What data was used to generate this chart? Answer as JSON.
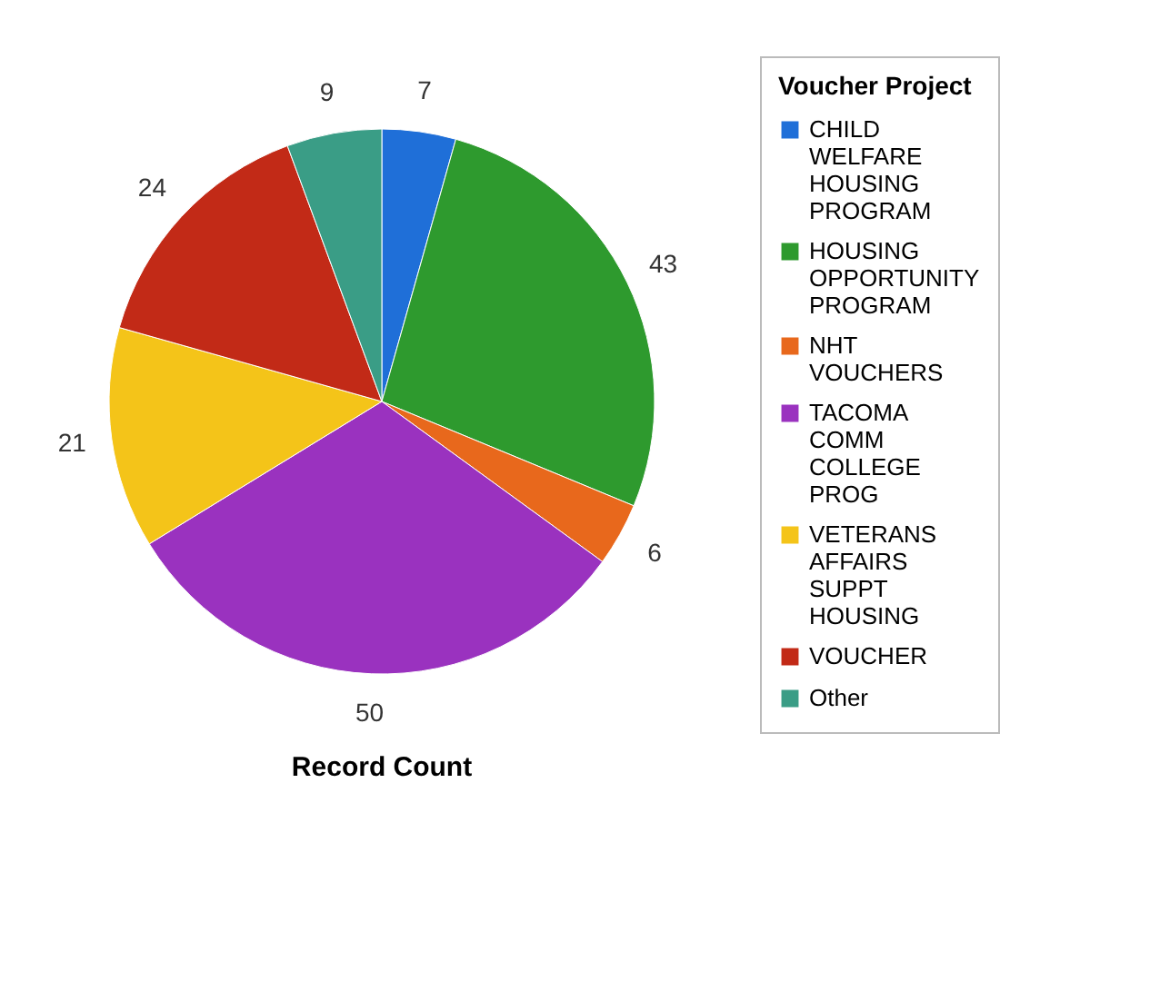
{
  "chart_data": {
    "type": "pie",
    "xlabel": "Record Count",
    "legend_title": "Voucher Project",
    "legend": "right",
    "data_labels": true,
    "categories": [
      "CHILD WELFARE HOUSING PROGRAM",
      "HOUSING OPPORTUNITY PROGRAM",
      "NHT VOUCHERS",
      "TACOMA COMM COLLEGE PROG",
      "VETERANS AFFAIRS SUPPT HOUSING",
      "VOUCHER",
      "Other"
    ],
    "values": [
      7,
      43,
      6,
      50,
      21,
      24,
      9
    ],
    "colors": [
      "#1f6fd8",
      "#2e9a2e",
      "#e8681c",
      "#9a32bf",
      "#f4c419",
      "#c22a17",
      "#3a9d86"
    ]
  }
}
